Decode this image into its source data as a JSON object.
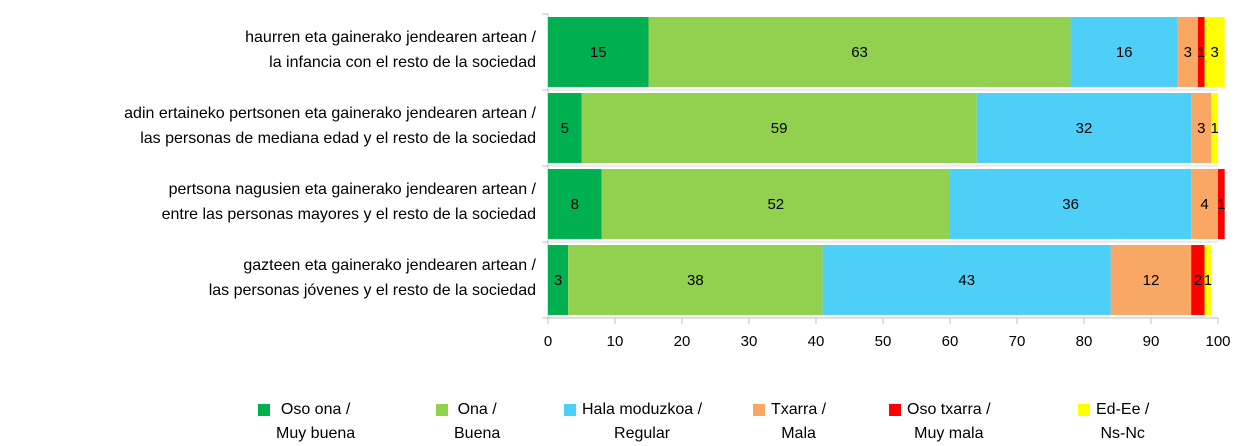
{
  "chart_data": {
    "type": "bar_stacked_horizontal",
    "categories": [
      "haurren eta gainerako jendearen artean /\nla infancia con el resto de la sociedad",
      "adin ertaineko pertsonen eta gainerako jendearen artean /\nlas personas de mediana edad y el resto de la sociedad",
      "pertsona nagusien eta gainerako jendearen artean /\nentre las personas mayores y el resto de la sociedad",
      "gazteen eta gainerako jendearen artean /\nlas personas jóvenes y el resto de la sociedad"
    ],
    "series": [
      {
        "name": "Oso ona /\nMuy buena",
        "color": "#00b050",
        "values": [
          15,
          5,
          8,
          3
        ]
      },
      {
        "name": "Ona /\nBuena",
        "color": "#92d050",
        "values": [
          63,
          59,
          52,
          38
        ]
      },
      {
        "name": "Hala moduzkoa /\nRegular",
        "color": "#4dcff8",
        "values": [
          16,
          32,
          36,
          43
        ]
      },
      {
        "name": "Txarra /\nMala",
        "color": "#f8a765",
        "values": [
          3,
          3,
          4,
          12
        ]
      },
      {
        "name": "Oso txarra /\nMuy mala",
        "color": "#ff0000",
        "values": [
          1,
          null,
          1,
          2
        ]
      },
      {
        "name": "Ed-Ee /\nNs-Nc",
        "color": "#ffff00",
        "values": [
          3,
          1,
          null,
          1
        ]
      }
    ],
    "xlim": [
      0,
      100
    ],
    "xticks": [
      0,
      10,
      20,
      30,
      40,
      50,
      60,
      70,
      80,
      90,
      100
    ]
  }
}
